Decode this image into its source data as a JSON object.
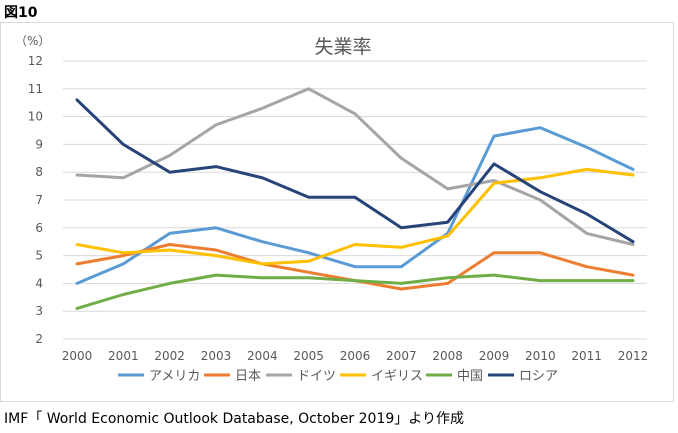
{
  "figure_label": "図10",
  "source_note": "IMF「 World Economic Outlook Database, October 2019」より作成",
  "chart_data": {
    "type": "line",
    "title": "失業率",
    "ylabel": "（%）",
    "xlabel": "",
    "ylim": [
      2,
      12
    ],
    "yticks": [
      2,
      3,
      4,
      5,
      6,
      7,
      8,
      9,
      10,
      11,
      12
    ],
    "grid": true,
    "legend": "bottom",
    "categories": [
      "2000",
      "2001",
      "2002",
      "2003",
      "2004",
      "2005",
      "2006",
      "2007",
      "2008",
      "2009",
      "2010",
      "2011",
      "2012"
    ],
    "series": [
      {
        "name": "アメリカ",
        "color": "#5b9bd5",
        "values": [
          4.0,
          4.7,
          5.8,
          6.0,
          5.5,
          5.1,
          4.6,
          4.6,
          5.8,
          9.3,
          9.6,
          8.9,
          8.1
        ]
      },
      {
        "name": "日本",
        "color": "#ed7d31",
        "values": [
          4.7,
          5.0,
          5.4,
          5.2,
          4.7,
          4.4,
          4.1,
          3.8,
          4.0,
          5.1,
          5.1,
          4.6,
          4.3
        ]
      },
      {
        "name": "ドイツ",
        "color": "#a5a5a5",
        "values": [
          7.9,
          7.8,
          8.6,
          9.7,
          10.3,
          11.0,
          10.1,
          8.5,
          7.4,
          7.7,
          7.0,
          5.8,
          5.4
        ]
      },
      {
        "name": "イギリス",
        "color": "#ffc000",
        "values": [
          5.4,
          5.1,
          5.2,
          5.0,
          4.7,
          4.8,
          5.4,
          5.3,
          5.7,
          7.6,
          7.8,
          8.1,
          7.9
        ]
      },
      {
        "name": "中国",
        "color": "#70ad47",
        "values": [
          3.1,
          3.6,
          4.0,
          4.3,
          4.2,
          4.2,
          4.1,
          4.0,
          4.2,
          4.3,
          4.1,
          4.1,
          4.1
        ]
      },
      {
        "name": "ロシア",
        "color": "#264478",
        "values": [
          10.6,
          9.0,
          8.0,
          8.2,
          7.8,
          7.1,
          7.1,
          6.0,
          6.2,
          8.3,
          7.3,
          6.5,
          5.5
        ]
      }
    ]
  }
}
